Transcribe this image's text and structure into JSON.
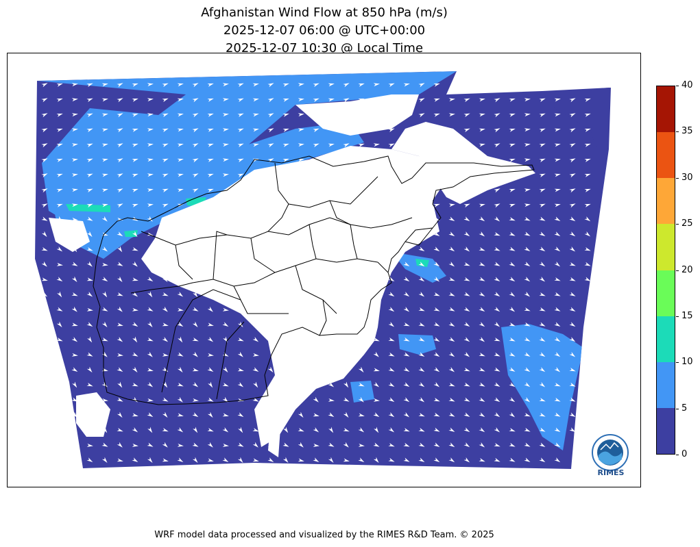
{
  "title": {
    "line1": "Afghanistan Wind Flow at 850 hPa (m/s)",
    "line2": "2025-12-07 06:00 @ UTC+00:00",
    "line3": "2025-12-07 10:30 @ Local Time"
  },
  "colorbar": {
    "ticks": [
      "0",
      "5",
      "10",
      "15",
      "20",
      "25",
      "30",
      "35",
      "40"
    ],
    "colors": [
      "#3d3fa1",
      "#4296f5",
      "#1cdbb8",
      "#6afc58",
      "#cde82d",
      "#fea737",
      "#eb5412",
      "#a51504"
    ]
  },
  "map": {
    "colors": {
      "calm": "#3d3fa1",
      "breeze": "#4296f5",
      "moderate": "#1cdbb8",
      "border": "#000000",
      "arrow": "#ffffff"
    }
  },
  "logo": {
    "text": "RIMES",
    "icon": "rimes-globe-icon"
  },
  "footer": "WRF model data processed and visualized by the RIMES R&D Team. © 2025"
}
